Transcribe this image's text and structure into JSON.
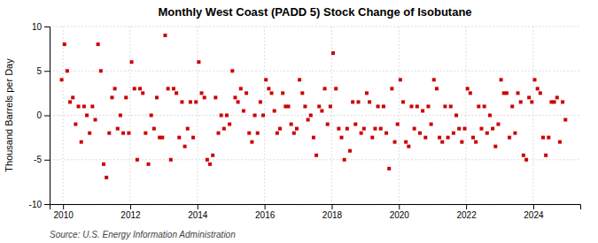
{
  "chart_data": {
    "type": "scatter",
    "title": "Monthly West Coast (PADD 5) Stock Change of Isobutane",
    "ylabel": "Thousand Barrels per Day",
    "source": "Source: U.S. Energy Information Administration",
    "color": "#cc0000",
    "marker": "square",
    "grid": true,
    "xlim": [
      2009.6,
      2025.4
    ],
    "xticks": [
      2010,
      2012,
      2014,
      2016,
      2018,
      2020,
      2022,
      2024
    ],
    "ylim": [
      -10,
      10
    ],
    "yticks": [
      -10,
      -5,
      0,
      5,
      10
    ],
    "x": [
      2009.9583333333333,
      2010.0416666666667,
      2010.125,
      2010.2083333333333,
      2010.2916666666667,
      2010.375,
      2010.4583333333333,
      2010.5416666666667,
      2010.625,
      2010.7083333333333,
      2010.7916666666667,
      2010.875,
      2010.9583333333333,
      2011.0416666666667,
      2011.125,
      2011.2083333333333,
      2011.2916666666667,
      2011.375,
      2011.4583333333333,
      2011.5416666666667,
      2011.625,
      2011.7083333333333,
      2011.7916666666667,
      2011.875,
      2011.9583333333333,
      2012.0416666666667,
      2012.125,
      2012.2083333333333,
      2012.2916666666667,
      2012.375,
      2012.4583333333333,
      2012.5416666666667,
      2012.625,
      2012.7083333333333,
      2012.7916666666667,
      2012.875,
      2012.9583333333333,
      2013.0416666666667,
      2013.125,
      2013.2083333333333,
      2013.2916666666667,
      2013.375,
      2013.4583333333333,
      2013.5416666666667,
      2013.625,
      2013.7083333333333,
      2013.7916666666667,
      2013.875,
      2013.9583333333333,
      2014.0416666666667,
      2014.125,
      2014.2083333333333,
      2014.2916666666667,
      2014.375,
      2014.4583333333333,
      2014.5416666666667,
      2014.625,
      2014.7083333333333,
      2014.7916666666667,
      2014.875,
      2014.9583333333333,
      2015.0416666666667,
      2015.125,
      2015.2083333333333,
      2015.2916666666667,
      2015.375,
      2015.4583333333333,
      2015.5416666666667,
      2015.625,
      2015.7083333333333,
      2015.7916666666667,
      2015.875,
      2015.9583333333333,
      2016.0416666666667,
      2016.125,
      2016.2083333333333,
      2016.2916666666667,
      2016.375,
      2016.4583333333333,
      2016.5416666666667,
      2016.625,
      2016.7083333333333,
      2016.7916666666667,
      2016.875,
      2016.9583333333333,
      2017.0416666666667,
      2017.125,
      2017.2083333333333,
      2017.2916666666667,
      2017.375,
      2017.4583333333333,
      2017.5416666666667,
      2017.625,
      2017.7083333333333,
      2017.7916666666667,
      2017.875,
      2017.9583333333333,
      2018.0416666666667,
      2018.125,
      2018.2083333333333,
      2018.2916666666667,
      2018.375,
      2018.4583333333333,
      2018.5416666666667,
      2018.625,
      2018.7083333333333,
      2018.7916666666667,
      2018.875,
      2018.9583333333333,
      2019.0416666666667,
      2019.125,
      2019.2083333333333,
      2019.2916666666667,
      2019.375,
      2019.4583333333333,
      2019.5416666666667,
      2019.625,
      2019.7083333333333,
      2019.7916666666667,
      2019.875,
      2019.9583333333333,
      2020.0416666666667,
      2020.125,
      2020.2083333333333,
      2020.2916666666667,
      2020.375,
      2020.4583333333333,
      2020.5416666666667,
      2020.625,
      2020.7083333333333,
      2020.7916666666667,
      2020.875,
      2020.9583333333333,
      2021.0416666666667,
      2021.125,
      2021.2083333333333,
      2021.2916666666667,
      2021.375,
      2021.4583333333333,
      2021.5416666666667,
      2021.625,
      2021.7083333333333,
      2021.7916666666667,
      2021.875,
      2021.9583333333333,
      2022.0416666666667,
      2022.125,
      2022.2083333333333,
      2022.2916666666667,
      2022.375,
      2022.4583333333333,
      2022.5416666666667,
      2022.625,
      2022.7083333333333,
      2022.7916666666667,
      2022.875,
      2022.9583333333333,
      2023.0416666666667,
      2023.125,
      2023.2083333333333,
      2023.2916666666667,
      2023.375,
      2023.4583333333333,
      2023.5416666666667,
      2023.625,
      2023.7083333333333,
      2023.7916666666667,
      2023.875,
      2023.9583333333333,
      2024.0416666666667,
      2024.125,
      2024.2083333333333,
      2024.2916666666667,
      2024.375,
      2024.4583333333333,
      2024.5416666666667,
      2024.625,
      2024.7083333333333,
      2024.7916666666667,
      2024.875,
      2024.9583333333333
    ],
    "values": [
      4.0,
      8.0,
      5.0,
      1.5,
      2.0,
      -1.0,
      1.0,
      -3.0,
      1.0,
      0.0,
      -2.0,
      1.0,
      -0.5,
      8.0,
      5.0,
      -5.5,
      -7.0,
      -2.0,
      2.0,
      3.0,
      -1.5,
      0.0,
      -2.0,
      2.0,
      -2.0,
      6.0,
      3.0,
      -5.0,
      3.0,
      2.5,
      -2.0,
      -5.5,
      0.0,
      -1.5,
      2.0,
      -2.5,
      -2.5,
      9.0,
      3.0,
      -5.0,
      3.0,
      2.5,
      -2.5,
      1.5,
      -3.5,
      -1.5,
      1.5,
      -2.5,
      1.5,
      6.0,
      2.5,
      2.0,
      -5.0,
      -5.5,
      -4.5,
      2.0,
      -2.0,
      0.0,
      -1.5,
      0.0,
      -1.0,
      5.0,
      2.0,
      1.5,
      3.0,
      0.5,
      2.5,
      -2.0,
      -3.0,
      0.0,
      -2.0,
      1.5,
      0.0,
      4.0,
      3.0,
      2.5,
      0.5,
      -2.0,
      -1.5,
      2.5,
      1.0,
      1.0,
      -1.0,
      -2.0,
      -1.5,
      4.0,
      2.5,
      1.0,
      -0.5,
      0.0,
      -2.5,
      -4.5,
      1.0,
      0.5,
      3.0,
      -1.0,
      1.0,
      7.0,
      3.0,
      -1.5,
      -2.5,
      -5.0,
      -1.5,
      -4.0,
      1.5,
      -1.0,
      1.5,
      -2.0,
      -1.5,
      2.5,
      1.5,
      -2.5,
      -1.5,
      1.0,
      -1.5,
      1.0,
      -2.0,
      -6.0,
      3.0,
      -3.0,
      -1.0,
      4.0,
      1.5,
      -3.0,
      -3.5,
      1.0,
      -1.5,
      1.0,
      -2.0,
      0.5,
      -2.5,
      1.0,
      -1.0,
      4.0,
      3.0,
      -2.5,
      -3.0,
      1.0,
      -2.5,
      1.0,
      -2.0,
      0.0,
      -1.5,
      -3.0,
      -1.5,
      3.0,
      2.5,
      -2.5,
      -3.0,
      1.0,
      -1.5,
      1.0,
      -2.0,
      0.0,
      -1.5,
      -3.5,
      -1.0,
      4.0,
      2.5,
      2.5,
      -2.5,
      1.0,
      -2.0,
      2.5,
      1.5,
      -4.5,
      -5.0,
      2.0,
      1.5,
      4.0,
      3.0,
      2.5,
      -2.5,
      -4.5,
      -2.5,
      1.5,
      1.5,
      2.0,
      -3.0,
      1.5,
      -0.5
    ]
  }
}
